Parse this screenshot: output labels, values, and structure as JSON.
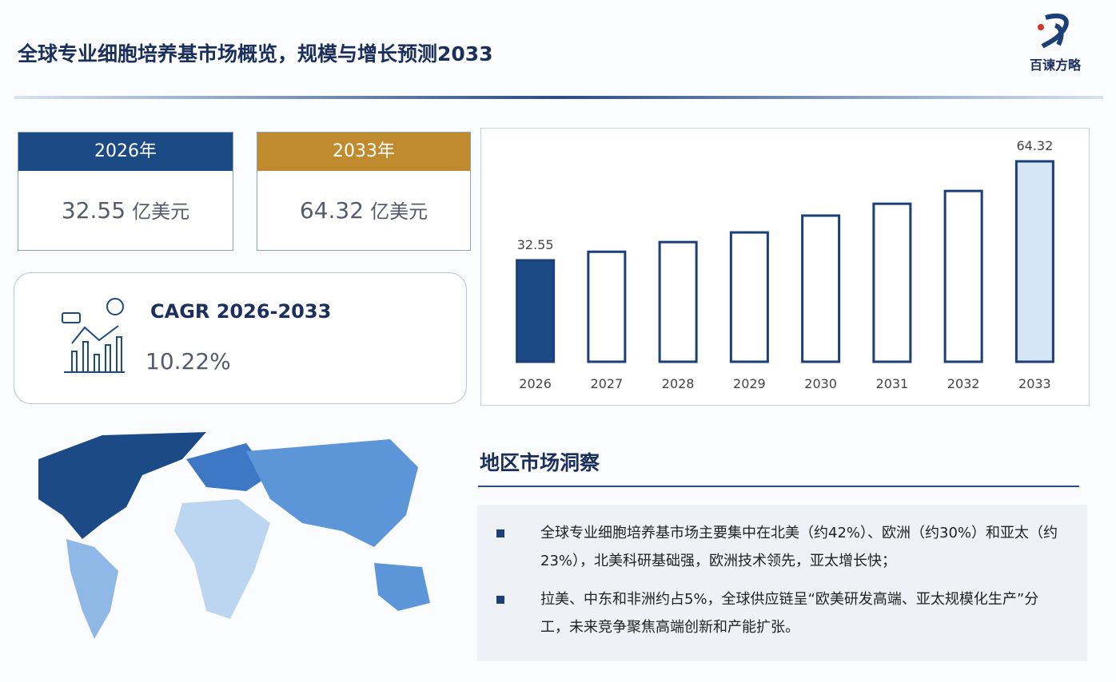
{
  "header": {
    "title": "全球专业细胞培养基市场概览，规模与增长预测2033",
    "logo_text": "百谏方略"
  },
  "cards": [
    {
      "year": "2026年",
      "value": 32.55,
      "unit": "亿美元"
    },
    {
      "year": "2033年",
      "value": 64.32,
      "unit": "亿美元"
    }
  ],
  "cagr": {
    "label": "CAGR 2026-2033",
    "value": "10.22%"
  },
  "chart_data": {
    "type": "bar",
    "categories": [
      "2026",
      "2027",
      "2028",
      "2029",
      "2030",
      "2031",
      "2032",
      "2033"
    ],
    "values": [
      32.55,
      35.3,
      38.4,
      41.5,
      46.9,
      50.7,
      54.8,
      64.32
    ],
    "value_labels": [
      "32.55",
      null,
      null,
      null,
      null,
      null,
      null,
      "64.32"
    ],
    "colors": [
      "#1c4a87",
      "#ffffff",
      "#ffffff",
      "#ffffff",
      "#ffffff",
      "#ffffff",
      "#ffffff",
      "#d6e6f8"
    ],
    "stroke": "#1c3f78"
  },
  "insight": {
    "title": "地区市场洞察",
    "bullets": [
      "全球专业细胞培养基市场主要集中在北美（约42%）、欧洲（约30%）和亚太（约23%），北美科研基础强，欧洲技术领先，亚太增长快；",
      "拉美、中东和非洲约占5%，全球供应链呈“欧美研发高端、亚太规模化生产”分工，未来竞争聚焦高端创新和产能扩张。"
    ]
  }
}
